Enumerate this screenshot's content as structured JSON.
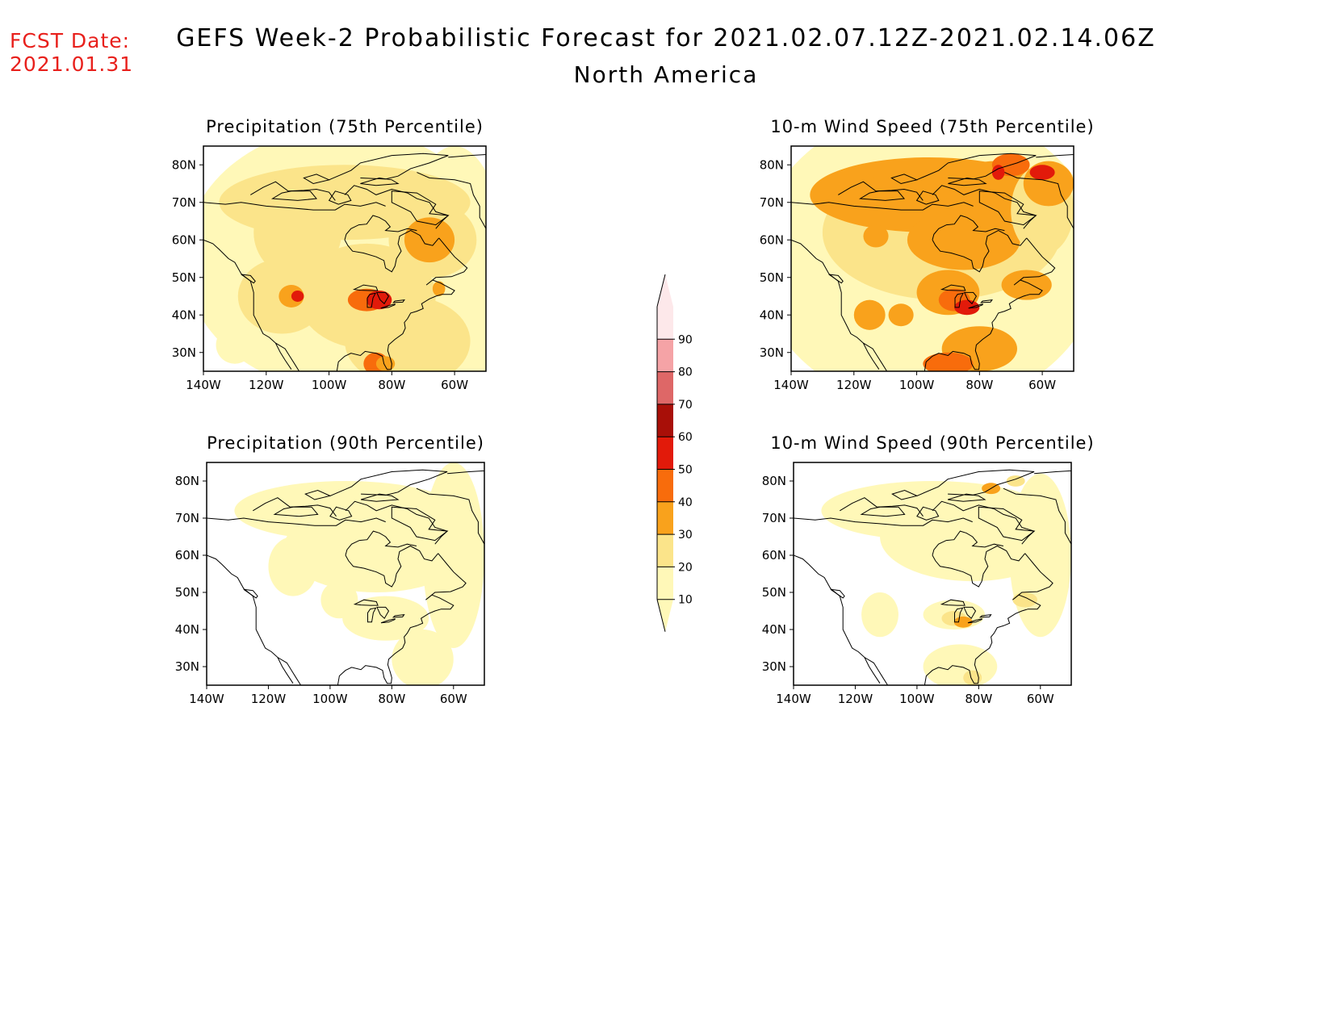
{
  "forecast_date": {
    "label": "FCST Date:",
    "value": "2021.01.31"
  },
  "title": "GEFS Week-2 Probabilistic Forecast for 2021.02.07.12Z-2021.02.14.06Z",
  "subtitle": "North America",
  "colors": {
    "fcst_text": "#e8201c",
    "levels": [
      "#fff8b8",
      "#fbe48a",
      "#f9a21c",
      "#f86c0c",
      "#e21a0a",
      "#a80f08",
      "#de6767",
      "#f5a3a6",
      "#fde8ea"
    ]
  },
  "colorbar": {
    "levels": [
      "10",
      "20",
      "30",
      "40",
      "50",
      "60",
      "70",
      "80",
      "90"
    ]
  },
  "axes": {
    "lat_ticks": [
      "80N",
      "70N",
      "60N",
      "50N",
      "40N",
      "30N"
    ],
    "lon_ticks": [
      "140W",
      "120W",
      "100W",
      "80W",
      "60W"
    ]
  },
  "panels": [
    {
      "title": "Precipitation (75th Percentile)",
      "variable": "precipitation",
      "percentile": 75
    },
    {
      "title": "10-m Wind Speed (75th Percentile)",
      "variable": "wind_speed_10m",
      "percentile": 75
    },
    {
      "title": "Precipitation (90th Percentile)",
      "variable": "precipitation",
      "percentile": 90
    },
    {
      "title": "10-m Wind Speed (90th Percentile)",
      "variable": "wind_speed_10m",
      "percentile": 90
    }
  ],
  "map_extent": {
    "lon": [
      -140,
      -50
    ],
    "lat": [
      25,
      85
    ]
  }
}
